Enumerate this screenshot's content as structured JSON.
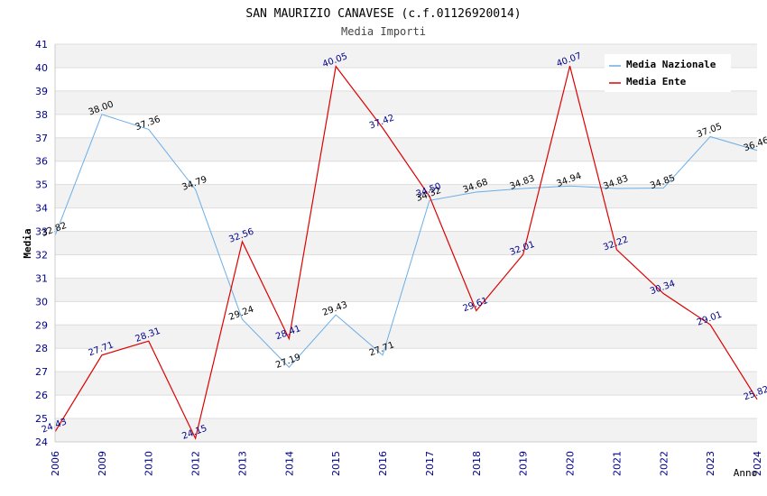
{
  "chart_data": {
    "type": "line",
    "title": "SAN MAURIZIO CANAVESE (c.f.01126920014)",
    "subtitle": "Media Importi",
    "xlabel": "Anno",
    "ylabel": "Media",
    "ylim": [
      24,
      41
    ],
    "yticks": [
      "24",
      "25",
      "26",
      "27",
      "28",
      "29",
      "30",
      "31",
      "32",
      "33",
      "34",
      "35",
      "36",
      "37",
      "38",
      "39",
      "40",
      "41"
    ],
    "categories": [
      "2006",
      "2009",
      "2010",
      "2012",
      "2013",
      "2014",
      "2015",
      "2016",
      "2017",
      "2018",
      "2019",
      "2020",
      "2021",
      "2022",
      "2023",
      "2024"
    ],
    "series": [
      {
        "name": "Media Nazionale",
        "color": "#6aaee8",
        "label_color": "#000000",
        "values": [
          32.82,
          38.0,
          37.36,
          34.79,
          29.24,
          27.19,
          29.43,
          27.71,
          34.32,
          34.68,
          34.83,
          34.94,
          34.83,
          34.85,
          37.05,
          36.46
        ],
        "labels": [
          "32.82",
          "38.00",
          "37.36",
          "34.79",
          "29.24",
          "27.19",
          "29.43",
          "27.71",
          "34.32",
          "34.68",
          "34.83",
          "34.94",
          "34.83",
          "34.85",
          "37.05",
          "36.46"
        ]
      },
      {
        "name": "Media Ente",
        "color": "#dd0000",
        "label_color": "#00008b",
        "values": [
          24.43,
          27.71,
          28.31,
          24.15,
          32.56,
          28.41,
          40.05,
          37.42,
          34.5,
          29.61,
          32.01,
          40.07,
          32.22,
          30.34,
          29.01,
          25.82
        ],
        "labels": [
          "24.43",
          "27.71",
          "28.31",
          "24.15",
          "32.56",
          "28.41",
          "40.05",
          "37.42",
          "34.50",
          "29.61",
          "32.01",
          "40.07",
          "32.22",
          "30.34",
          "29.01",
          "25.82"
        ]
      }
    ],
    "legend_position": "top-right",
    "grid": true
  }
}
